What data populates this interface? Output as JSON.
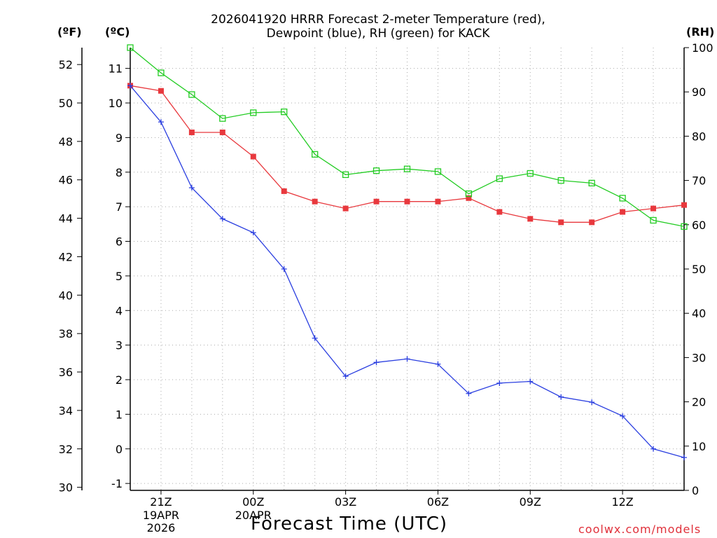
{
  "chart_data": {
    "type": "line",
    "title_line1": "2026041920 HRRR Forecast 2-meter Temperature (red),",
    "title_line2": "Dewpoint (blue), RH (green) for KACK",
    "units": {
      "fahrenheit": "(ºF)",
      "celsius": "(ºC)",
      "rh": "(RH)"
    },
    "xlabel": "Forecast Time (UTC)",
    "credit": "coolwx.com/models",
    "x_hours": [
      0,
      1,
      2,
      3,
      4,
      5,
      6,
      7,
      8,
      9,
      10,
      11,
      12,
      13,
      14,
      15,
      16,
      17,
      18
    ],
    "x_ticks": [
      {
        "hour": 1,
        "label": "21Z",
        "sub": [
          "19APR",
          "2026"
        ]
      },
      {
        "hour": 4,
        "label": "00Z",
        "sub": [
          "20APR"
        ]
      },
      {
        "hour": 7,
        "label": "03Z",
        "sub": []
      },
      {
        "hour": 10,
        "label": "06Z",
        "sub": []
      },
      {
        "hour": 13,
        "label": "09Z",
        "sub": []
      },
      {
        "hour": 16,
        "label": "12Z",
        "sub": []
      }
    ],
    "left_c_axis": {
      "range": [
        -1.2,
        11.6
      ],
      "ticks": [
        -1,
        0,
        1,
        2,
        3,
        4,
        5,
        6,
        7,
        8,
        9,
        10,
        11
      ]
    },
    "left_f_ticks": [
      30,
      32,
      34,
      36,
      38,
      40,
      42,
      44,
      46,
      48,
      50,
      52
    ],
    "right_axis": {
      "range": [
        0,
        100
      ],
      "ticks": [
        0,
        10,
        20,
        30,
        40,
        50,
        60,
        70,
        80,
        90,
        100
      ]
    },
    "series": [
      {
        "name": "Temperature",
        "unit": "C",
        "color": "#e8383d",
        "marker": "filled-square",
        "values": [
          10.5,
          10.35,
          9.15,
          9.15,
          8.45,
          7.45,
          7.15,
          6.95,
          7.15,
          7.15,
          7.15,
          7.25,
          6.85,
          6.65,
          6.55,
          6.55,
          6.85,
          6.95,
          7.05
        ]
      },
      {
        "name": "Dewpoint",
        "unit": "C",
        "color": "#2b3fe0",
        "marker": "plus",
        "values": [
          10.5,
          9.45,
          7.55,
          6.65,
          6.25,
          5.2,
          3.2,
          2.1,
          2.5,
          2.6,
          2.45,
          1.6,
          1.9,
          1.95,
          1.5,
          1.35,
          0.95,
          0.0,
          -0.25
        ]
      },
      {
        "name": "RH",
        "unit": "%",
        "color": "#22cc22",
        "marker": "open-square",
        "values": [
          100,
          94.3,
          89.4,
          84,
          85.3,
          85.5,
          75.9,
          71.3,
          72.2,
          72.6,
          72,
          67,
          70.4,
          71.6,
          70,
          69.4,
          66,
          61,
          59.6
        ]
      }
    ]
  }
}
